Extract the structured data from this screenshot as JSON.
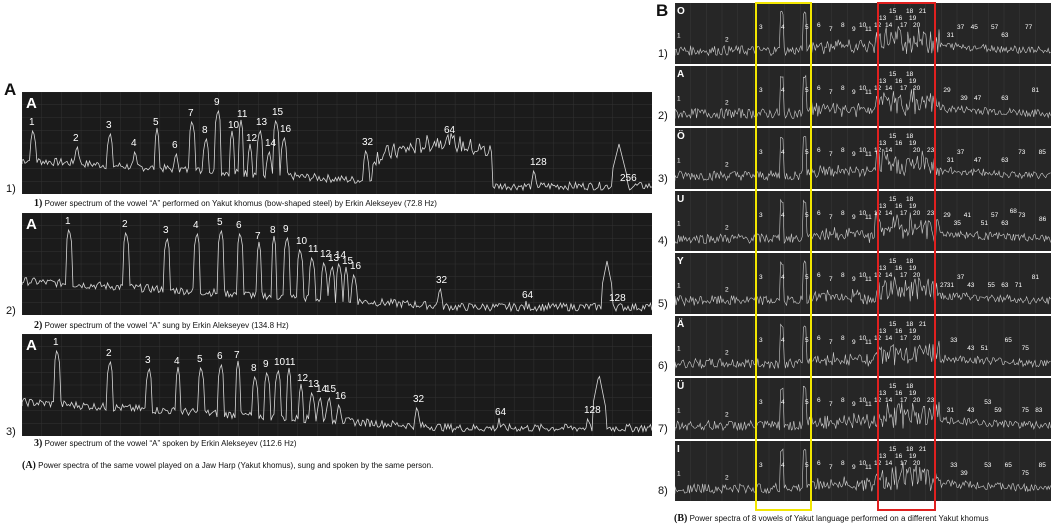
{
  "panel_a": {
    "label": "A",
    "rows": [
      {
        "tag": "A",
        "number": "1)",
        "caption_prefix": "1)",
        "caption": "Power spectrum of the vowel “A” performed on Yakut khomus (bow-shaped steel) by Erkin Alekseyev (72.8 Hz)"
      },
      {
        "tag": "A",
        "number": "2)",
        "caption_prefix": "2)",
        "caption": "Power spectrum of the vowel “A” sung by Erkin Alekseyev (134.8 Hz)"
      },
      {
        "tag": "A",
        "number": "3)",
        "caption_prefix": "3)",
        "caption": "Power spectrum of the vowel “A” spoken by Erkin Alekseyev (112.6 Hz)"
      }
    ],
    "footer_prefix": "(A)",
    "footer": "Power spectra of the same vowel played on a Jaw Harp (Yakut khomus), sung and spoken by the same person."
  },
  "panel_b": {
    "label": "B",
    "caption_prefix": "(B)",
    "caption": "Power spectra of 8 vowels of Yakut language performed on a different Yakut khomus",
    "rows": [
      {
        "vowel": "O",
        "number": "1)"
      },
      {
        "vowel": "A",
        "number": "2)"
      },
      {
        "vowel": "Ö",
        "number": "3)"
      },
      {
        "vowel": "U",
        "number": "4)"
      },
      {
        "vowel": "Y",
        "number": "5)"
      },
      {
        "vowel": "Ä",
        "number": "6)"
      },
      {
        "vowel": "Ü",
        "number": "7)"
      },
      {
        "vowel": "I",
        "number": "8)"
      }
    ],
    "highlight_colors": {
      "yellow": "#f2e600",
      "red": "#e0201f"
    }
  },
  "chart_data": [
    {
      "type": "line",
      "title": "Power spectrum of the vowel “A” performed on Yakut khomus (bow-shaped steel) by Erkin Alekseyev (72.8 Hz)",
      "fundamental_hz": 72.8,
      "harmonic_labels": [
        "1",
        "2",
        "3",
        "4",
        "5",
        "6",
        "7",
        "8",
        "9",
        "10",
        "11",
        "12",
        "13",
        "14",
        "15",
        "16",
        "32",
        "64",
        "128",
        "256"
      ]
    },
    {
      "type": "line",
      "title": "Power spectrum of the vowel “A” sung by Erkin Alekseyev (134.8 Hz)",
      "fundamental_hz": 134.8,
      "harmonic_labels": [
        "1",
        "2",
        "3",
        "4",
        "5",
        "6",
        "7",
        "8",
        "9",
        "10",
        "11",
        "12",
        "13",
        "14",
        "15",
        "16",
        "32",
        "64",
        "128"
      ]
    },
    {
      "type": "line",
      "title": "Power spectrum of the vowel “A” spoken by Erkin Alekseyev (112.6 Hz)",
      "fundamental_hz": 112.6,
      "harmonic_labels": [
        "1",
        "2",
        "3",
        "4",
        "5",
        "6",
        "7",
        "8",
        "9",
        "10",
        "11",
        "12",
        "13",
        "14",
        "15",
        "16",
        "32",
        "64",
        "128"
      ]
    },
    {
      "type": "line",
      "vowels": [
        "O",
        "A",
        "Ö",
        "U",
        "Y",
        "Ä",
        "Ü",
        "I"
      ],
      "harmonic_labels": [
        [
          "1",
          "2",
          "3",
          "4",
          "5",
          "6",
          "7",
          "8",
          "9",
          "10",
          "11",
          "12",
          "13",
          "14",
          "15",
          "16",
          "17",
          "18",
          "19",
          "20",
          "21",
          "31",
          "37",
          "45",
          "57",
          "63",
          "77"
        ],
        [
          "1",
          "2",
          "3",
          "4",
          "5",
          "6",
          "7",
          "8",
          "9",
          "10",
          "11",
          "12",
          "13",
          "14",
          "15",
          "16",
          "17",
          "18",
          "19",
          "20",
          "29",
          "39",
          "47",
          "63",
          "81"
        ],
        [
          "1",
          "2",
          "3",
          "4",
          "5",
          "6",
          "7",
          "8",
          "9",
          "10",
          "11",
          "12",
          "13",
          "14",
          "15",
          "16",
          "18",
          "19",
          "20",
          "23",
          "31",
          "37",
          "47",
          "63",
          "73",
          "85"
        ],
        [
          "1",
          "2",
          "3",
          "4",
          "5",
          "6",
          "7",
          "8",
          "9",
          "10",
          "11",
          "12",
          "13",
          "14",
          "15",
          "16",
          "17",
          "18",
          "19",
          "20",
          "23",
          "29",
          "35",
          "41",
          "51",
          "57",
          "63",
          "68",
          "73",
          "86"
        ],
        [
          "1",
          "2",
          "3",
          "4",
          "5",
          "6",
          "7",
          "8",
          "9",
          "10",
          "11",
          "12",
          "13",
          "14",
          "15",
          "16",
          "17",
          "18",
          "19",
          "20",
          "27",
          "31",
          "37",
          "43",
          "55",
          "63",
          "71",
          "81"
        ],
        [
          "1",
          "2",
          "3",
          "4",
          "5",
          "6",
          "7",
          "8",
          "9",
          "10",
          "11",
          "12",
          "13",
          "14",
          "15",
          "16",
          "17",
          "18",
          "19",
          "20",
          "21",
          "33",
          "43",
          "51",
          "65",
          "75"
        ],
        [
          "1",
          "2",
          "3",
          "4",
          "5",
          "6",
          "7",
          "8",
          "9",
          "10",
          "11",
          "12",
          "13",
          "14",
          "15",
          "16",
          "17",
          "18",
          "19",
          "20",
          "23",
          "31",
          "43",
          "53",
          "59",
          "75",
          "83"
        ],
        [
          "1",
          "2",
          "3",
          "4",
          "5",
          "6",
          "7",
          "8",
          "9",
          "10",
          "11",
          "12",
          "13",
          "14",
          "15",
          "16",
          "17",
          "18",
          "19",
          "20",
          "21",
          "33",
          "39",
          "53",
          "65",
          "75",
          "85"
        ]
      ]
    }
  ]
}
